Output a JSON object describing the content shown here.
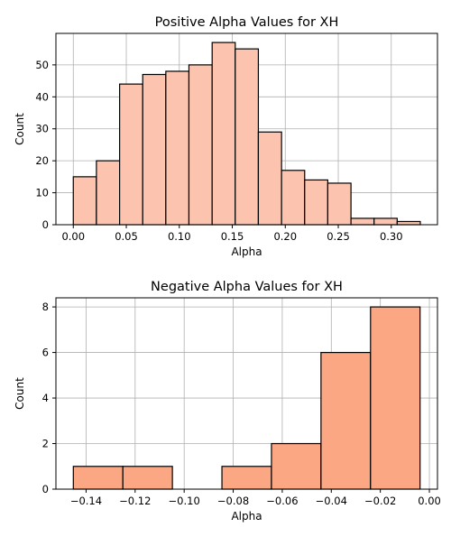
{
  "colors": {
    "positive_fill": "#fcc4ae",
    "negative_fill": "#fca783",
    "edge": "#000000",
    "grid": "#b0b0b0"
  },
  "chart_data": [
    {
      "type": "bar",
      "title": "Positive Alpha Values for XH",
      "xlabel": "Alpha",
      "ylabel": "Count",
      "grid": true,
      "xlim": [
        -0.0164,
        0.3436
      ],
      "ylim": [
        0,
        59.85
      ],
      "xticks": [
        0.0,
        0.05,
        0.1,
        0.15,
        0.2,
        0.25,
        0.3
      ],
      "xtick_labels": [
        "0.00",
        "0.05",
        "0.10",
        "0.15",
        "0.20",
        "0.25",
        "0.30"
      ],
      "yticks": [
        0,
        10,
        20,
        30,
        40,
        50
      ],
      "ytick_labels": [
        "0",
        "10",
        "20",
        "30",
        "40",
        "50"
      ],
      "bin_edges": [
        0.0,
        0.0218,
        0.0437,
        0.0655,
        0.0873,
        0.1091,
        0.131,
        0.1528,
        0.1746,
        0.1965,
        0.2183,
        0.2401,
        0.262,
        0.2838,
        0.3056,
        0.3274
      ],
      "values": [
        15,
        20,
        44,
        47,
        48,
        50,
        57,
        55,
        29,
        17,
        14,
        13,
        2,
        2,
        1
      ]
    },
    {
      "type": "bar",
      "title": "Negative Alpha Values for XH",
      "xlabel": "Alpha",
      "ylabel": "Count",
      "grid": true,
      "xlim": [
        -0.1523,
        0.0033
      ],
      "ylim": [
        0,
        8.4
      ],
      "xticks": [
        -0.14,
        -0.12,
        -0.1,
        -0.08,
        -0.06,
        -0.04,
        -0.02,
        0.0
      ],
      "xtick_labels": [
        "−0.14",
        "−0.12",
        "−0.10",
        "−0.08",
        "−0.06",
        "−0.04",
        "−0.02",
        "0.00"
      ],
      "yticks": [
        0,
        2,
        4,
        6,
        8
      ],
      "ytick_labels": [
        "0",
        "2",
        "4",
        "6",
        "8"
      ],
      "bin_edges": [
        -0.1452,
        -0.125,
        -0.1048,
        -0.0846,
        -0.0644,
        -0.0442,
        -0.024,
        -0.0038
      ],
      "values": [
        1,
        1,
        0,
        1,
        2,
        6,
        8
      ]
    }
  ]
}
